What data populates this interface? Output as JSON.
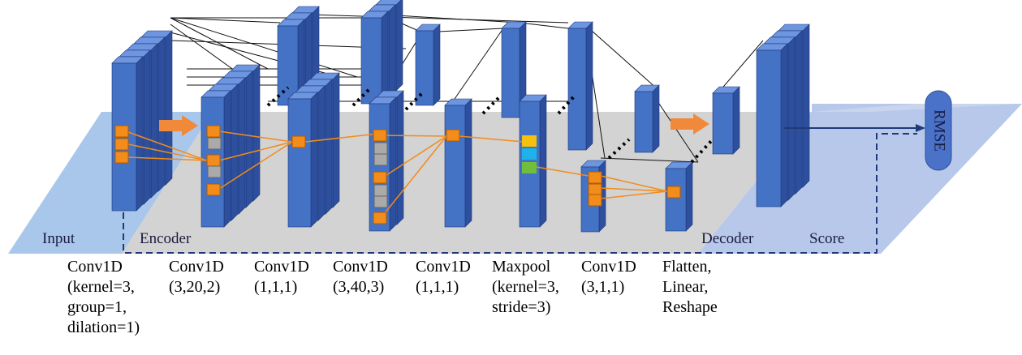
{
  "regions": {
    "input": "Input",
    "encoder": "Encoder",
    "decoder": "Decoder",
    "score": "Score"
  },
  "output": "RMSE",
  "layers": [
    {
      "lines": [
        "Conv1D",
        "(kernel=3,",
        "group=1,",
        "dilation=1)"
      ]
    },
    {
      "lines": [
        "Conv1D",
        "(3,20,2)"
      ]
    },
    {
      "lines": [
        "Conv1D",
        "(1,1,1)"
      ]
    },
    {
      "lines": [
        "Conv1D",
        "(3,40,3)"
      ]
    },
    {
      "lines": [
        "Conv1D",
        "(1,1,1)"
      ]
    },
    {
      "lines": [
        "Maxpool",
        "(kernel=3,",
        "stride=3)"
      ]
    },
    {
      "lines": [
        "Conv1D",
        "(3,1,1)"
      ]
    },
    {
      "lines": [
        "Flatten,",
        "Linear,",
        "Reshape"
      ]
    }
  ]
}
